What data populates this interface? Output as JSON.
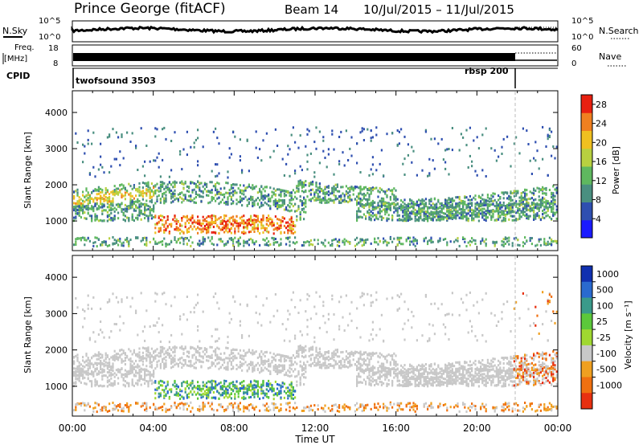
{
  "header": {
    "station": "Prince George (fitACF)",
    "beam": "Beam 14",
    "dates": "10/Jul/2015 – 11/Jul/2015"
  },
  "chart_data": [
    {
      "type": "line",
      "panel": "noise",
      "left_label": "N.Sky",
      "right_label": "N.Search",
      "left_ticks": [
        "10^5",
        "10^0"
      ],
      "right_ticks": [
        "10^5",
        "10^0"
      ],
      "xlim": [
        "00:00",
        "24:00"
      ]
    },
    {
      "type": "line",
      "panel": "frequency",
      "left_label": "Freq. [MHz]",
      "right_label": "Nave",
      "left_ticks": [
        "18",
        "8"
      ],
      "right_ticks": [
        "60",
        "0"
      ],
      "xlim": [
        "00:00",
        "24:00"
      ]
    },
    {
      "type": "table",
      "panel": "cpid",
      "label": "CPID",
      "segments": [
        {
          "name": "twofsound 3503",
          "start_hour": 0,
          "end_hour": 21.9
        },
        {
          "name": "rbsp 200",
          "start_hour": 21.9,
          "end_hour": 24
        }
      ]
    },
    {
      "type": "heatmap",
      "panel": "power",
      "ylabel": "Slant Range [km]",
      "yticks": [
        1000,
        2000,
        3000,
        4000
      ],
      "ylim": [
        180,
        4600
      ],
      "colorbar_label": "Power [dB]",
      "colorbar_ticks": [
        4,
        8,
        12,
        16,
        20,
        24,
        28
      ],
      "colorbar_range": [
        0,
        30
      ],
      "colorbar_colors": [
        "#1a1aff",
        "#2f4fb0",
        "#4a8f80",
        "#5fb85f",
        "#b8d040",
        "#f0c020",
        "#f08020",
        "#e82010"
      ]
    },
    {
      "type": "heatmap",
      "panel": "velocity",
      "ylabel": "Slant Range [km]",
      "yticks": [
        1000,
        2000,
        3000,
        4000
      ],
      "ylim": [
        180,
        4600
      ],
      "colorbar_label": "Velocity [m s⁻¹]",
      "colorbar_ticks": [
        "1000",
        "500",
        "100",
        "25",
        "-25",
        "-100",
        "-500",
        "-1000"
      ],
      "colorbar_colors": [
        "#1030b0",
        "#2a6acf",
        "#3a9a8a",
        "#5cc83a",
        "#a0d830",
        "#c8c8c8",
        "#f0a020",
        "#f07010",
        "#e83010"
      ],
      "xticks": [
        "00:00",
        "04:00",
        "08:00",
        "12:00",
        "16:00",
        "20:00",
        "00:00"
      ],
      "xlabel": "Time UT"
    }
  ]
}
